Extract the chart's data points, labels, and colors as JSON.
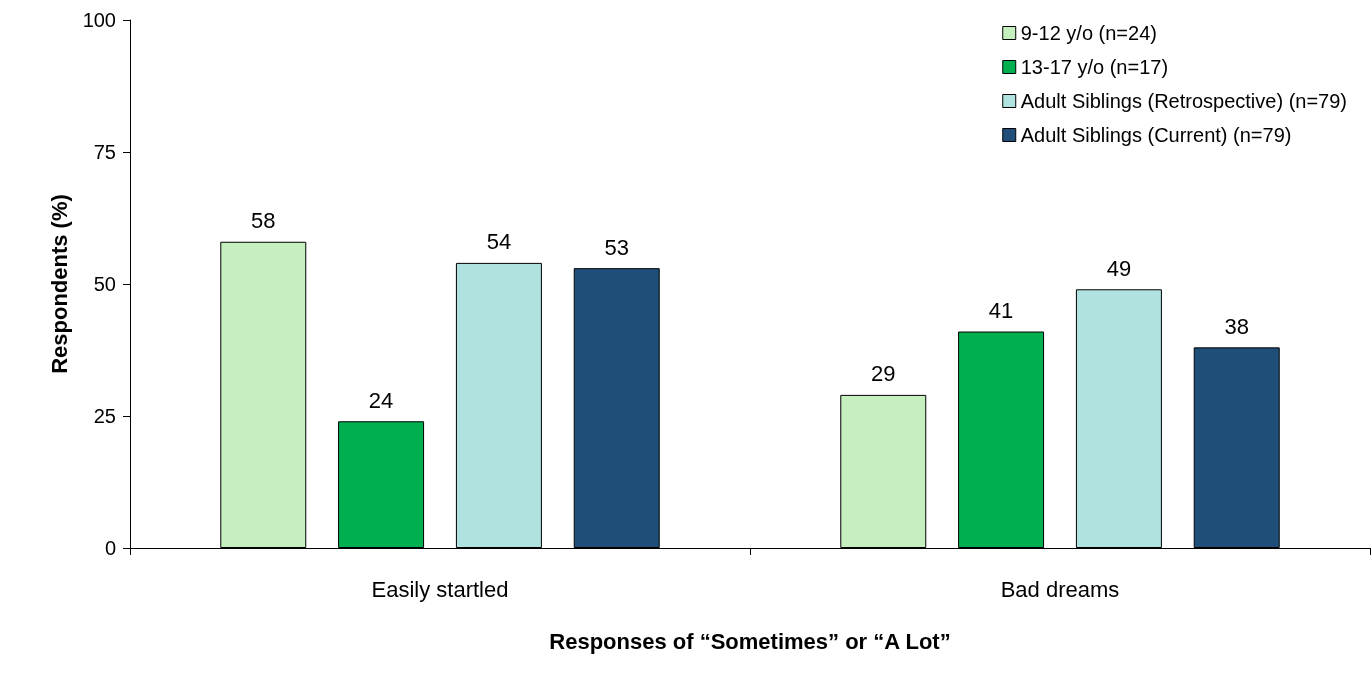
{
  "chart_data": {
    "type": "bar",
    "xlabel": "Responses of “Sometimes” or “A Lot”",
    "ylabel": "Respondents (%)",
    "categories": [
      "Easily startled",
      "Bad dreams"
    ],
    "series": [
      {
        "name": "9-12 y/o (n=24)",
        "color": "#c6efbf",
        "values": [
          58,
          29
        ]
      },
      {
        "name": "13-17 y/o (n=17)",
        "color": "#00b050",
        "values": [
          24,
          41
        ]
      },
      {
        "name": "Adult Siblings (Retrospective) (n=79)",
        "color": "#b0e3df",
        "values": [
          54,
          49
        ]
      },
      {
        "name": "Adult Siblings (Current) (n=79)",
        "color": "#1f4e79",
        "values": [
          53,
          38
        ]
      }
    ],
    "ylim": [
      0,
      100
    ],
    "yticks": [
      0,
      25,
      50,
      75,
      100
    ],
    "grid": false,
    "legend": "top right",
    "data_labels": true
  }
}
